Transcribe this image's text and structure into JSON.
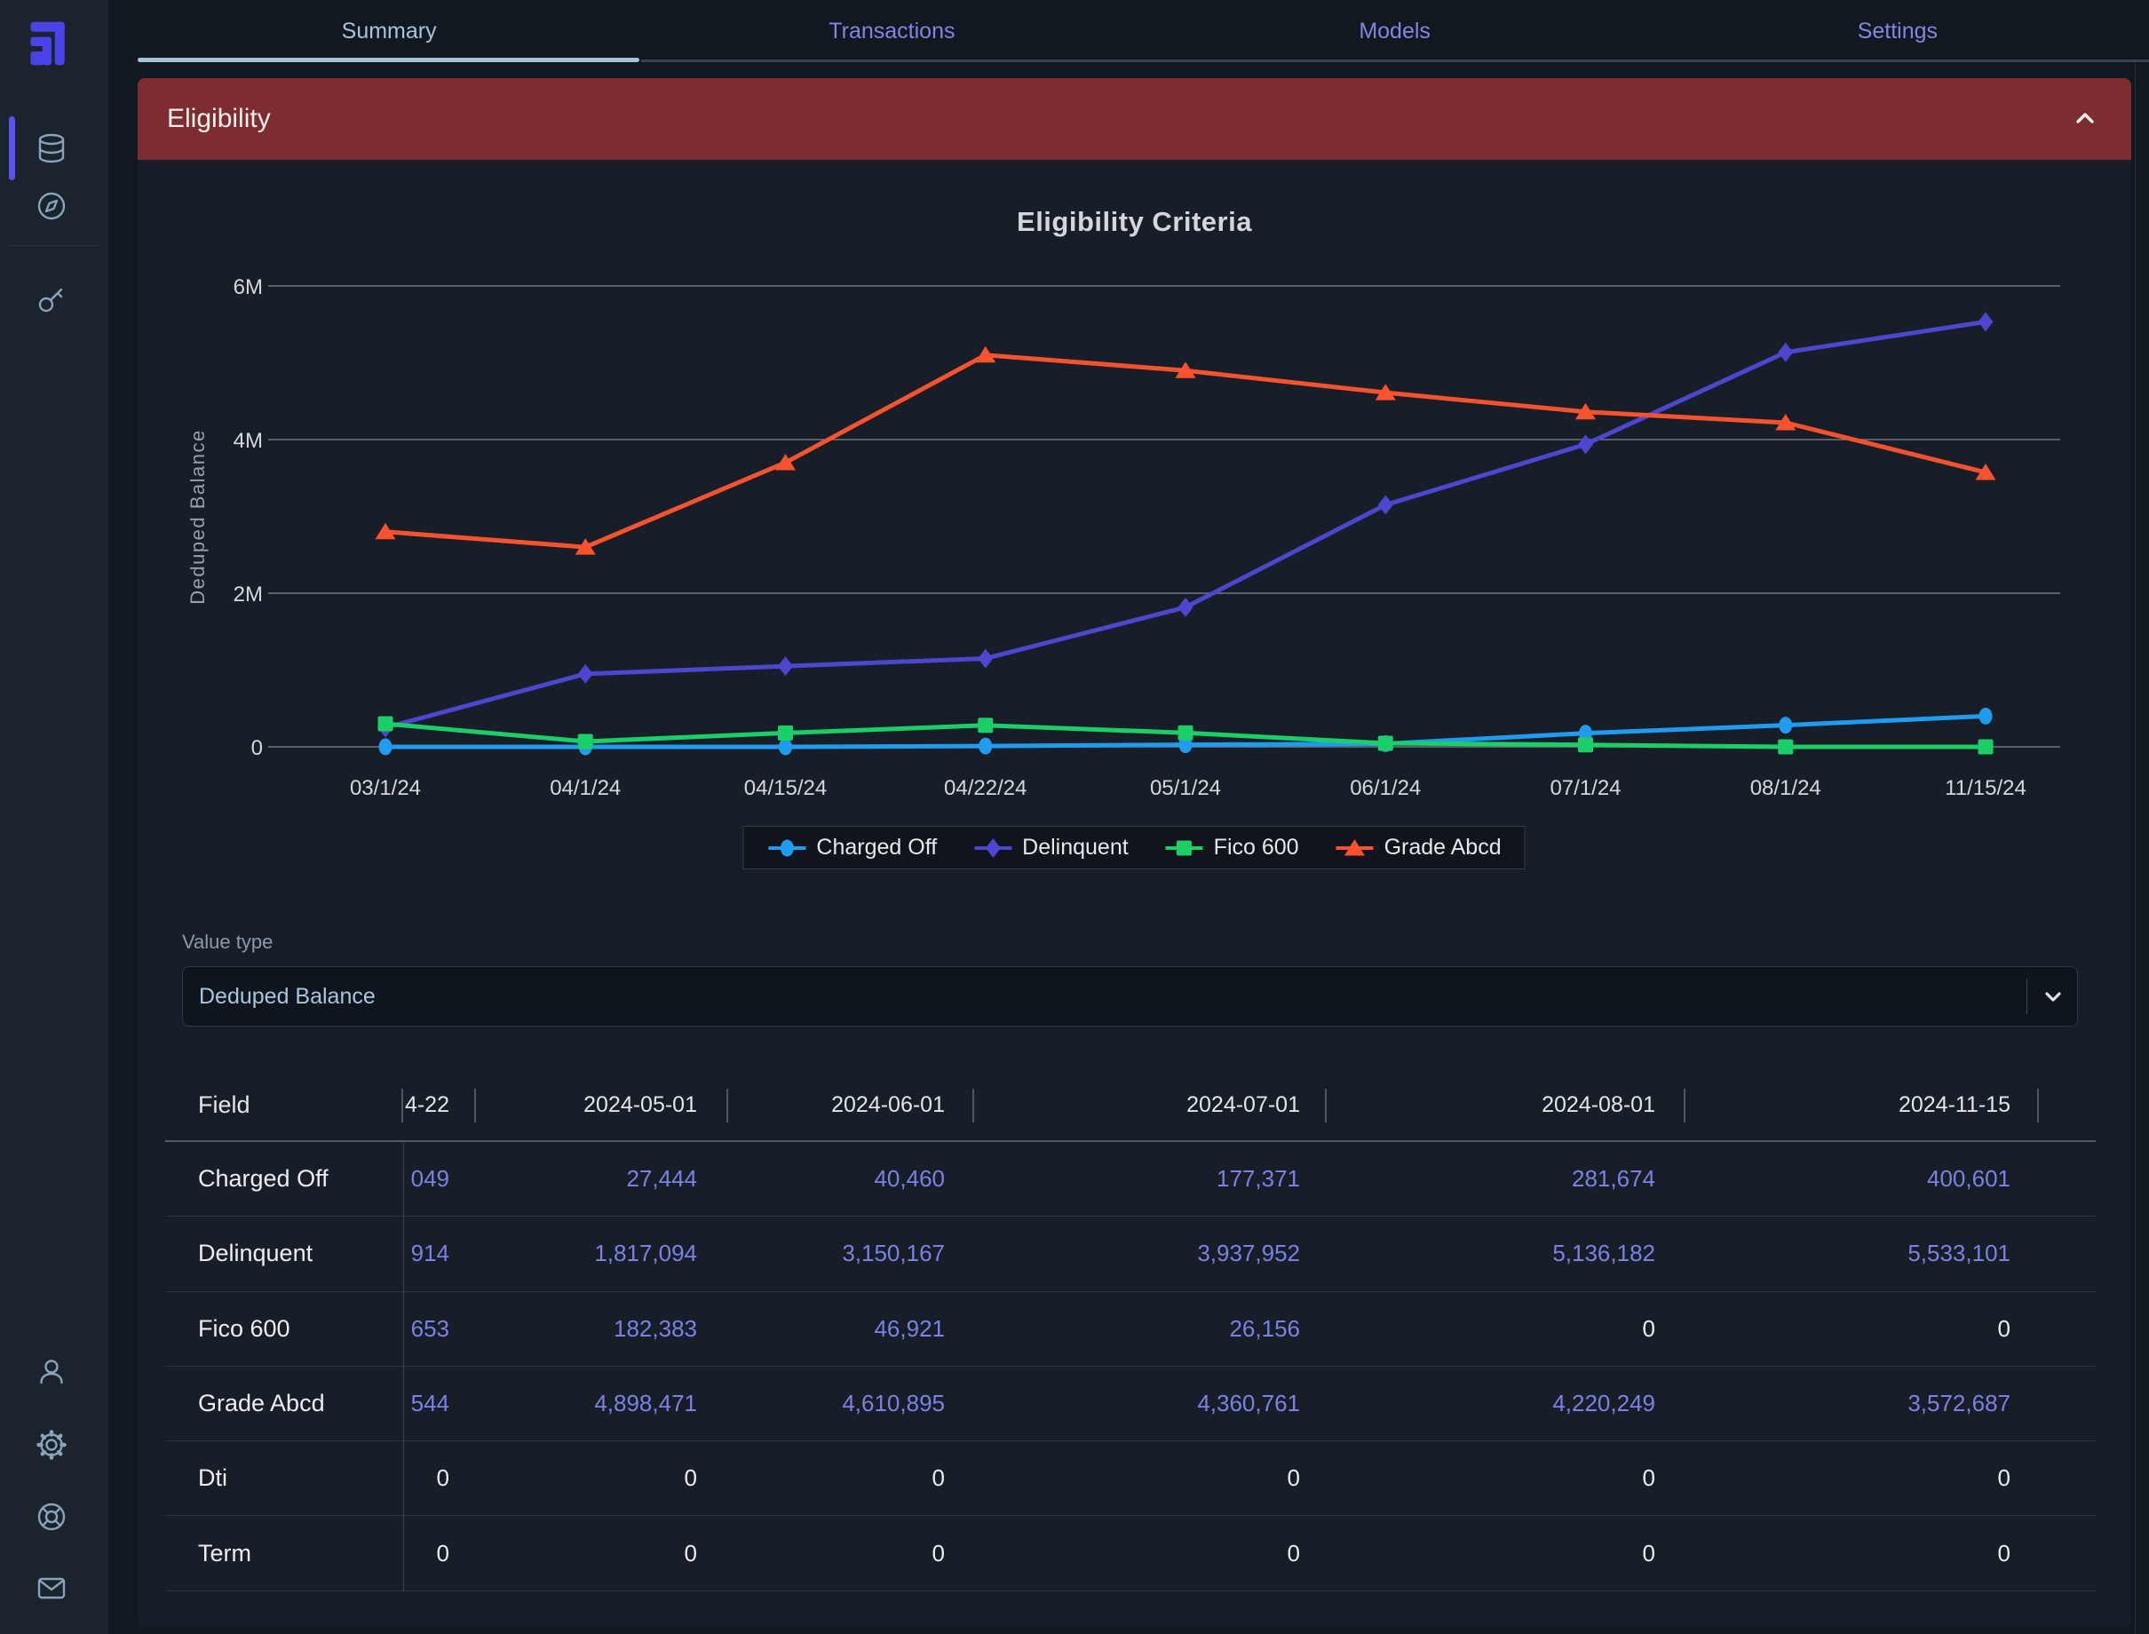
{
  "sidebar": {
    "icons": [
      {
        "name": "database",
        "active": true
      },
      {
        "name": "compass",
        "active": false
      },
      {
        "name": "key",
        "active": false
      },
      {
        "name": "user",
        "active": false
      },
      {
        "name": "settings-gear",
        "active": false
      },
      {
        "name": "help-lifering",
        "active": false
      },
      {
        "name": "mail",
        "active": false
      }
    ]
  },
  "tabs": [
    {
      "label": "Summary",
      "active": true
    },
    {
      "label": "Transactions",
      "active": false
    },
    {
      "label": "Models",
      "active": false
    },
    {
      "label": "Settings",
      "active": false
    }
  ],
  "panel": {
    "title": "Eligibility",
    "collapse_icon": "chevron-up"
  },
  "chart_data": {
    "type": "line",
    "title": "Eligibility Criteria",
    "ylabel": "Deduped Balance",
    "x_labels": [
      "03/1/24",
      "04/1/24",
      "04/15/24",
      "04/22/24",
      "05/1/24",
      "06/1/24",
      "07/1/24",
      "08/1/24",
      "11/15/24"
    ],
    "y_ticks": [
      {
        "value": 0,
        "label": "0"
      },
      {
        "value": 2000000,
        "label": "2M"
      },
      {
        "value": 4000000,
        "label": "4M"
      },
      {
        "value": 6000000,
        "label": "6M"
      }
    ],
    "ylim": [
      0,
      6500000
    ],
    "grid": true,
    "legend_position": "bottom",
    "series": [
      {
        "name": "Charged Off",
        "color": "#1f9cf0",
        "marker": "circle",
        "values": [
          0,
          0,
          0,
          10049,
          27444,
          40460,
          177371,
          281674,
          400601
        ]
      },
      {
        "name": "Delinquent",
        "color": "#4d46d0",
        "marker": "diamond",
        "values": [
          250000,
          950000,
          1050000,
          1150914,
          1817094,
          3150167,
          3937952,
          5136182,
          5533101
        ]
      },
      {
        "name": "Fico 600",
        "color": "#1bcf68",
        "marker": "square",
        "values": [
          300000,
          70000,
          180000,
          279653,
          182383,
          46921,
          26156,
          0,
          0
        ]
      },
      {
        "name": "Grade Abcd",
        "color": "#f8522e",
        "marker": "triangle",
        "values": [
          2800000,
          2600000,
          3700000,
          5100544,
          4898471,
          4610895,
          4360761,
          4220249,
          3572687
        ]
      }
    ]
  },
  "value_type": {
    "label": "Value type",
    "selected": "Deduped Balance"
  },
  "table": {
    "field_header": "Field",
    "columns": [
      "4-22",
      "2024-05-01",
      "2024-06-01",
      "2024-07-01",
      "2024-08-01",
      "2024-11-15"
    ],
    "note": "first data column is clipped by horizontal scroll",
    "rows": [
      {
        "field": "Charged Off",
        "values": [
          "049",
          "27,444",
          "40,460",
          "177,371",
          "281,674",
          "400,601"
        ]
      },
      {
        "field": "Delinquent",
        "values": [
          "914",
          "1,817,094",
          "3,150,167",
          "3,937,952",
          "5,136,182",
          "5,533,101"
        ]
      },
      {
        "field": "Fico 600",
        "values": [
          "653",
          "182,383",
          "46,921",
          "26,156",
          "0",
          "0"
        ]
      },
      {
        "field": "Grade Abcd",
        "values": [
          "544",
          "4,898,471",
          "4,610,895",
          "4,360,761",
          "4,220,249",
          "3,572,687"
        ]
      },
      {
        "field": "Dti",
        "values": [
          "0",
          "0",
          "0",
          "0",
          "0",
          "0"
        ]
      },
      {
        "field": "Term",
        "values": [
          "0",
          "0",
          "0",
          "0",
          "0",
          "0"
        ]
      }
    ]
  },
  "colors": {
    "page_bg": "#12181f",
    "sidebar_bg": "#1b232c",
    "card_bg": "#171e27",
    "panel_header_bg": "#7d2c2f",
    "accent_purple": "#5b4ff5",
    "tab_inactive": "#8286e2",
    "tab_active": "#a7c4da",
    "value_purple": "#7c81e4"
  }
}
